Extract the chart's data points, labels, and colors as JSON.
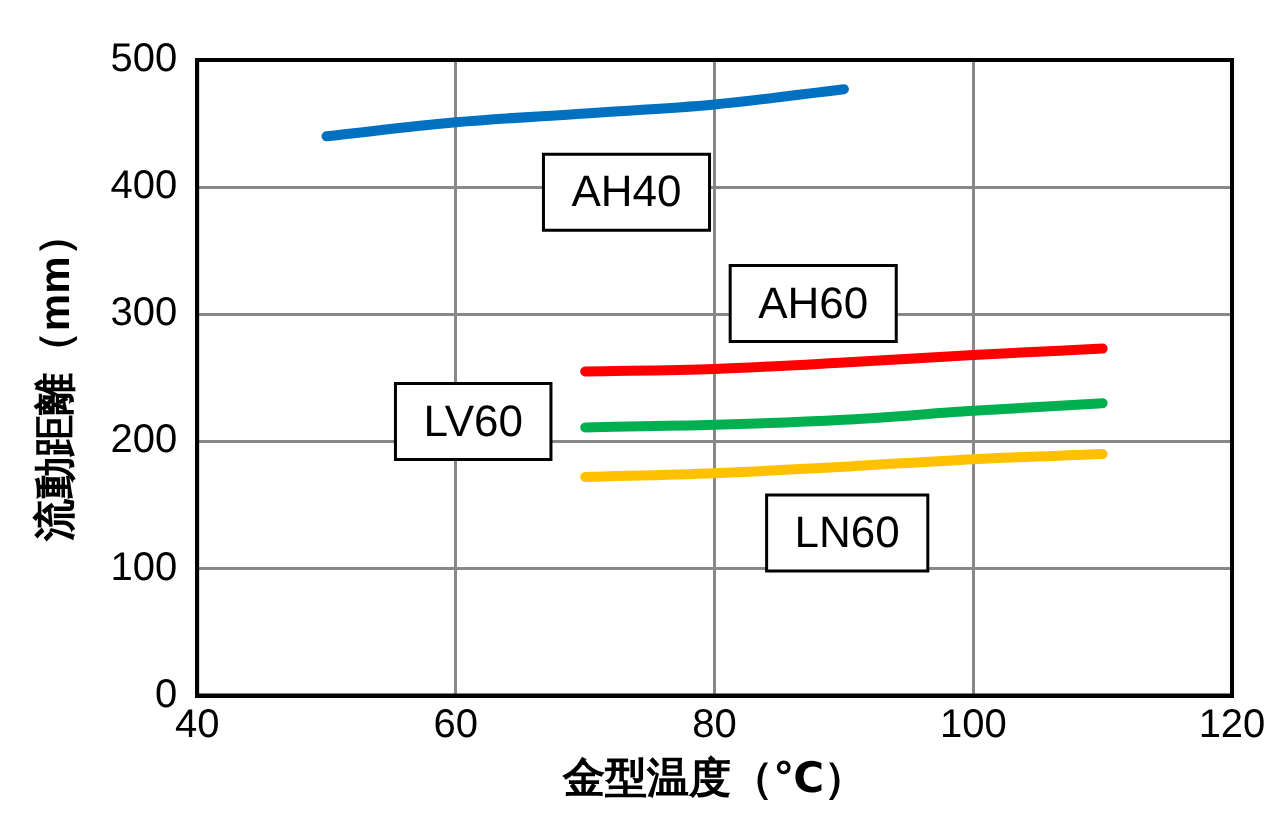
{
  "chart_data": {
    "type": "line",
    "xlabel": "金型温度（℃）",
    "ylabel": "流動距離（mm）",
    "xlim": [
      40,
      120
    ],
    "xticks": [
      40,
      60,
      80,
      100,
      120
    ],
    "ylim": [
      0,
      500
    ],
    "yticks": [
      0,
      100,
      200,
      300,
      400,
      500
    ],
    "grid": true,
    "legend": false,
    "marker": "none",
    "series": [
      {
        "name": "AH40",
        "color": "#0070c0",
        "x": [
          50,
          60,
          70,
          80,
          90
        ],
        "values": [
          440,
          451,
          458,
          465,
          477
        ]
      },
      {
        "name": "AH60",
        "color": "#ff0000",
        "x": [
          70,
          80,
          90,
          100,
          110
        ],
        "values": [
          255,
          257,
          262,
          268,
          273
        ]
      },
      {
        "name": "LV60",
        "color": "#00b050",
        "x": [
          70,
          80,
          90,
          100,
          110
        ],
        "values": [
          211,
          213,
          217,
          224,
          230
        ]
      },
      {
        "name": "LN60",
        "color": "#ffc000",
        "x": [
          70,
          80,
          90,
          100,
          110
        ],
        "values": [
          172,
          175,
          180,
          186,
          190
        ]
      }
    ]
  }
}
